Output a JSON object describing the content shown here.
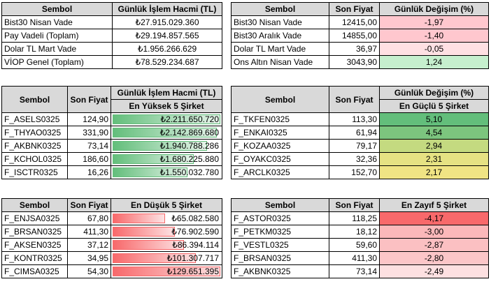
{
  "table1": {
    "headers": [
      "Sembol",
      "Günlük İşlem Hacmi (TL)"
    ],
    "rows": [
      [
        "Bist30 Nisan Vade",
        "₺27.915.029.360"
      ],
      [
        "Pay Vadeli (Toplam)",
        "₺29.194.857.565"
      ],
      [
        "Dolar TL Mart Vade",
        "₺1.956.266.629"
      ],
      [
        "VİOP Genel (Toplam)",
        "₺78.529.234.687"
      ]
    ]
  },
  "table2": {
    "headers": [
      "Sembol",
      "Son Fiyat",
      "Günlük Değişim (%)"
    ],
    "rows": [
      {
        "symbol": "Bist30 Nisan Vade",
        "price": "12415,00",
        "change": "-1,97",
        "color": "#ffc7ce"
      },
      {
        "symbol": "Bist30 Aralık Vade",
        "price": "14855,00",
        "change": "-1,40",
        "color": "#ffc7ce"
      },
      {
        "symbol": "Dolar TL Mart Vade",
        "price": "36,97",
        "change": "-0,05",
        "color": "#ffe0e3"
      },
      {
        "symbol": "Ons Altın Nisan Vade",
        "price": "3043,90",
        "change": "1,24",
        "color": "#c6efce"
      }
    ]
  },
  "top_volume": {
    "headers": [
      "Sembol",
      "Son Fiyat",
      "Günlük İşlem Hacmi (TL)"
    ],
    "subheader": "En Yüksek 5 Şirket",
    "rows": [
      {
        "symbol": "F_ASELS0325",
        "price": "124,90",
        "volume": "₺2.211.650.720",
        "level": 1.0
      },
      {
        "symbol": "F_THYAO0325",
        "price": "331,90",
        "volume": "₺2.142.869.680",
        "level": 0.97
      },
      {
        "symbol": "F_AKBNK0325",
        "price": "73,14",
        "volume": "₺1.940.788.286",
        "level": 0.88
      },
      {
        "symbol": "F_KCHOL0325",
        "price": "186,60",
        "volume": "₺1.680.225.880",
        "level": 0.76
      },
      {
        "symbol": "F_ISCTR0325",
        "price": "16,26",
        "volume": "₺1.550.032.780",
        "level": 0.7
      }
    ]
  },
  "top_gainers": {
    "headers": [
      "Sembol",
      "Son Fiyat",
      "Günlük Değişim (%)"
    ],
    "subheader": "En Güçlü 5 Şirket",
    "rows": [
      {
        "symbol": "F_TKFEN0325",
        "price": "113,30",
        "change": "5,10",
        "color": "#63be7b"
      },
      {
        "symbol": "F_ENKAI0325",
        "price": "61,94",
        "change": "4,54",
        "color": "#7cc57e"
      },
      {
        "symbol": "F_KOZAA0325",
        "price": "79,17",
        "change": "2,94",
        "color": "#c4da80"
      },
      {
        "symbol": "F_OYAKC0325",
        "price": "32,36",
        "change": "2,31",
        "color": "#e6e283"
      },
      {
        "symbol": "F_ARCLK0325",
        "price": "152,70",
        "change": "2,17",
        "color": "#f0e484"
      }
    ]
  },
  "low_volume": {
    "headers": [
      "Sembol",
      "Son Fiyat",
      "En Düşük 5 Şirket"
    ],
    "rows": [
      {
        "symbol": "F_ENJSA0325",
        "price": "67,80",
        "volume": "₺65.082.580",
        "level": 0.5
      },
      {
        "symbol": "F_BRSAN0325",
        "price": "411,30",
        "volume": "₺76.902.590",
        "level": 0.59
      },
      {
        "symbol": "F_AKSEN0325",
        "price": "37,12",
        "volume": "₺86.394.114",
        "level": 0.67
      },
      {
        "symbol": "F_KONTR0325",
        "price": "34,95",
        "volume": "₺101.307.717",
        "level": 0.78
      },
      {
        "symbol": "F_CIMSA0325",
        "price": "54,30",
        "volume": "₺129.651.395",
        "level": 1.0
      }
    ]
  },
  "top_losers": {
    "headers": [
      "Sembol",
      "Son Fiyat",
      "En Zayıf 5 Şirket"
    ],
    "rows": [
      {
        "symbol": "F_ASTOR0325",
        "price": "118,25",
        "change": "-4,17",
        "color": "#f8696b"
      },
      {
        "symbol": "F_PETKM0325",
        "price": "18,12",
        "change": "-3,00",
        "color": "#fbb8ba"
      },
      {
        "symbol": "F_VESTL0325",
        "price": "59,60",
        "change": "-2,87",
        "color": "#fbc0c2"
      },
      {
        "symbol": "F_BRSAN0325",
        "price": "411,30",
        "change": "-2,80",
        "color": "#fcc6c8"
      },
      {
        "symbol": "F_AKBNK0325",
        "price": "73,14",
        "change": "-2,49",
        "color": "#fde0e1"
      }
    ]
  }
}
